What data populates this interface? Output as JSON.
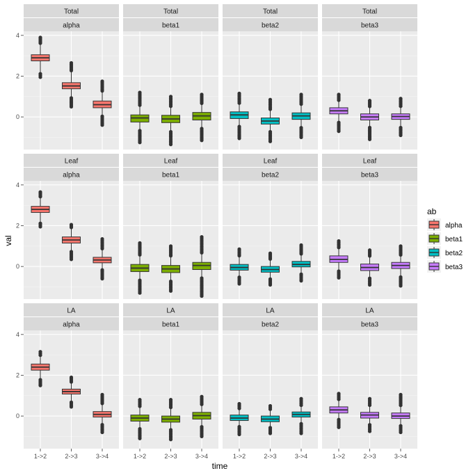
{
  "chart_data": {
    "type": "boxplot",
    "facet_rows": [
      "Total",
      "Leaf",
      "LA"
    ],
    "facet_cols": [
      "alpha",
      "beta1",
      "beta2",
      "beta3"
    ],
    "x_categories": [
      "1->2",
      "2->3",
      "3->4"
    ],
    "xlabel": "time",
    "ylabel": "val",
    "y_ticks": [
      0,
      2,
      4
    ],
    "ylim": [
      -1.6,
      4.2
    ],
    "legend": {
      "title": "ab",
      "position": "right",
      "entries": [
        {
          "name": "alpha",
          "color": "#F8766D"
        },
        {
          "name": "beta1",
          "color": "#7CAE00"
        },
        {
          "name": "beta2",
          "color": "#00BFC4"
        },
        {
          "name": "beta3",
          "color": "#C77CFF"
        }
      ]
    },
    "panels": [
      {
        "row": "Total",
        "col": "alpha",
        "boxes": [
          {
            "x": "1->2",
            "wlo": 2.2,
            "q1": 2.75,
            "med": 2.9,
            "q3": 3.05,
            "whi": 3.55,
            "olo": 1.95,
            "ohi": 3.9
          },
          {
            "x": "2->3",
            "wlo": 1.0,
            "q1": 1.38,
            "med": 1.52,
            "q3": 1.68,
            "whi": 2.2,
            "olo": 0.5,
            "ohi": 2.65
          },
          {
            "x": "3->4",
            "wlo": 0.1,
            "q1": 0.45,
            "med": 0.6,
            "q3": 0.78,
            "whi": 1.2,
            "olo": -0.4,
            "ohi": 1.75
          }
        ]
      },
      {
        "row": "Total",
        "col": "beta1",
        "boxes": [
          {
            "x": "1->2",
            "wlo": -0.6,
            "q1": -0.25,
            "med": -0.05,
            "q3": 0.1,
            "whi": 0.5,
            "olo": -1.25,
            "ohi": 1.2
          },
          {
            "x": "2->3",
            "wlo": -0.65,
            "q1": -0.28,
            "med": -0.1,
            "q3": 0.08,
            "whi": 0.45,
            "olo": -1.35,
            "ohi": 1.0
          },
          {
            "x": "3->4",
            "wlo": -0.5,
            "q1": -0.15,
            "med": 0.05,
            "q3": 0.22,
            "whi": 0.6,
            "olo": -1.15,
            "ohi": 1.1
          }
        ]
      },
      {
        "row": "Total",
        "col": "beta2",
        "boxes": [
          {
            "x": "1->2",
            "wlo": -0.4,
            "q1": -0.08,
            "med": 0.1,
            "q3": 0.25,
            "whi": 0.6,
            "olo": -1.05,
            "ohi": 1.15
          },
          {
            "x": "2->3",
            "wlo": -0.65,
            "q1": -0.35,
            "med": -0.2,
            "q3": -0.05,
            "whi": 0.3,
            "olo": -1.2,
            "ohi": 0.85
          },
          {
            "x": "3->4",
            "wlo": -0.45,
            "q1": -0.12,
            "med": 0.05,
            "q3": 0.2,
            "whi": 0.55,
            "olo": -1.0,
            "ohi": 1.1
          }
        ]
      },
      {
        "row": "Total",
        "col": "beta3",
        "boxes": [
          {
            "x": "1->2",
            "wlo": -0.2,
            "q1": 0.15,
            "med": 0.3,
            "q3": 0.45,
            "whi": 0.75,
            "olo": -0.7,
            "ohi": 1.1
          },
          {
            "x": "2->3",
            "wlo": -0.45,
            "q1": -0.15,
            "med": 0.0,
            "q3": 0.15,
            "whi": 0.45,
            "olo": -1.1,
            "ohi": 0.8
          },
          {
            "x": "3->4",
            "wlo": -0.45,
            "q1": -0.12,
            "med": 0.02,
            "q3": 0.15,
            "whi": 0.45,
            "olo": -0.9,
            "ohi": 0.9
          }
        ]
      },
      {
        "row": "Leaf",
        "col": "alpha",
        "boxes": [
          {
            "x": "1->2",
            "wlo": 2.2,
            "q1": 2.65,
            "med": 2.8,
            "q3": 2.95,
            "whi": 3.35,
            "olo": 1.95,
            "ohi": 3.65
          },
          {
            "x": "2->3",
            "wlo": 0.8,
            "q1": 1.15,
            "med": 1.3,
            "q3": 1.45,
            "whi": 1.85,
            "olo": 0.35,
            "ohi": 2.05
          },
          {
            "x": "3->4",
            "wlo": -0.1,
            "q1": 0.18,
            "med": 0.32,
            "q3": 0.45,
            "whi": 0.8,
            "olo": -0.6,
            "ohi": 1.35
          }
        ]
      },
      {
        "row": "Leaf",
        "col": "beta1",
        "boxes": [
          {
            "x": "1->2",
            "wlo": -0.6,
            "q1": -0.25,
            "med": -0.08,
            "q3": 0.1,
            "whi": 0.5,
            "olo": -1.3,
            "ohi": 1.15
          },
          {
            "x": "2->3",
            "wlo": -0.65,
            "q1": -0.3,
            "med": -0.12,
            "q3": 0.05,
            "whi": 0.45,
            "olo": -1.2,
            "ohi": 1.0
          },
          {
            "x": "3->4",
            "wlo": -0.5,
            "q1": -0.15,
            "med": 0.05,
            "q3": 0.2,
            "whi": 0.6,
            "olo": -1.45,
            "ohi": 1.45
          }
        ]
      },
      {
        "row": "Leaf",
        "col": "beta2",
        "boxes": [
          {
            "x": "1->2",
            "wlo": -0.45,
            "q1": -0.18,
            "med": -0.05,
            "q3": 0.1,
            "whi": 0.45,
            "olo": -0.85,
            "ohi": 0.85
          },
          {
            "x": "2->3",
            "wlo": -0.55,
            "q1": -0.28,
            "med": -0.15,
            "q3": 0.0,
            "whi": 0.3,
            "olo": -0.9,
            "ohi": 0.65
          },
          {
            "x": "3->4",
            "wlo": -0.3,
            "q1": -0.02,
            "med": 0.1,
            "q3": 0.25,
            "whi": 0.55,
            "olo": -0.7,
            "ohi": 1.05
          }
        ]
      },
      {
        "row": "Leaf",
        "col": "beta3",
        "boxes": [
          {
            "x": "1->2",
            "wlo": -0.15,
            "q1": 0.2,
            "med": 0.35,
            "q3": 0.52,
            "whi": 0.85,
            "olo": -0.55,
            "ohi": 1.25
          },
          {
            "x": "2->3",
            "wlo": -0.5,
            "q1": -0.2,
            "med": -0.05,
            "q3": 0.12,
            "whi": 0.45,
            "olo": -0.9,
            "ohi": 0.8
          },
          {
            "x": "3->4",
            "wlo": -0.45,
            "q1": -0.1,
            "med": 0.05,
            "q3": 0.2,
            "whi": 0.5,
            "olo": -0.95,
            "ohi": 1.0
          }
        ]
      },
      {
        "row": "LA",
        "col": "alpha",
        "boxes": [
          {
            "x": "1->2",
            "wlo": 1.85,
            "q1": 2.25,
            "med": 2.4,
            "q3": 2.55,
            "whi": 2.9,
            "olo": 1.5,
            "ohi": 3.15
          },
          {
            "x": "2->3",
            "wlo": 0.75,
            "q1": 1.08,
            "med": 1.2,
            "q3": 1.32,
            "whi": 1.6,
            "olo": 0.45,
            "ohi": 1.9
          },
          {
            "x": "3->4",
            "wlo": -0.35,
            "q1": -0.05,
            "med": 0.08,
            "q3": 0.22,
            "whi": 0.55,
            "olo": -0.8,
            "ohi": 1.05
          }
        ]
      },
      {
        "row": "LA",
        "col": "beta1",
        "boxes": [
          {
            "x": "1->2",
            "wlo": -0.55,
            "q1": -0.25,
            "med": -0.1,
            "q3": 0.05,
            "whi": 0.4,
            "olo": -1.1,
            "ohi": 0.8
          },
          {
            "x": "2->3",
            "wlo": -0.6,
            "q1": -0.3,
            "med": -0.15,
            "q3": 0.0,
            "whi": 0.35,
            "olo": -1.15,
            "ohi": 0.8
          },
          {
            "x": "3->4",
            "wlo": -0.45,
            "q1": -0.15,
            "med": 0.02,
            "q3": 0.18,
            "whi": 0.5,
            "olo": -1.0,
            "ohi": 0.95
          }
        ]
      },
      {
        "row": "LA",
        "col": "beta2",
        "boxes": [
          {
            "x": "1->2",
            "wlo": -0.45,
            "q1": -0.22,
            "med": -0.1,
            "q3": 0.05,
            "whi": 0.3,
            "olo": -0.9,
            "ohi": 0.6
          },
          {
            "x": "2->3",
            "wlo": -0.5,
            "q1": -0.28,
            "med": -0.15,
            "q3": 0.0,
            "whi": 0.25,
            "olo": -0.85,
            "ohi": 0.5
          },
          {
            "x": "3->4",
            "wlo": -0.3,
            "q1": -0.05,
            "med": 0.08,
            "q3": 0.2,
            "whi": 0.45,
            "olo": -0.85,
            "ohi": 0.85
          }
        ]
      },
      {
        "row": "LA",
        "col": "beta3",
        "boxes": [
          {
            "x": "1->2",
            "wlo": -0.1,
            "q1": 0.15,
            "med": 0.3,
            "q3": 0.45,
            "whi": 0.75,
            "olo": -0.55,
            "ohi": 1.1
          },
          {
            "x": "2->3",
            "wlo": -0.35,
            "q1": -0.1,
            "med": 0.05,
            "q3": 0.18,
            "whi": 0.45,
            "olo": -0.75,
            "ohi": 0.85
          },
          {
            "x": "3->4",
            "wlo": -0.4,
            "q1": -0.12,
            "med": 0.0,
            "q3": 0.15,
            "whi": 0.45,
            "olo": -0.8,
            "ohi": 1.05
          }
        ]
      }
    ]
  }
}
